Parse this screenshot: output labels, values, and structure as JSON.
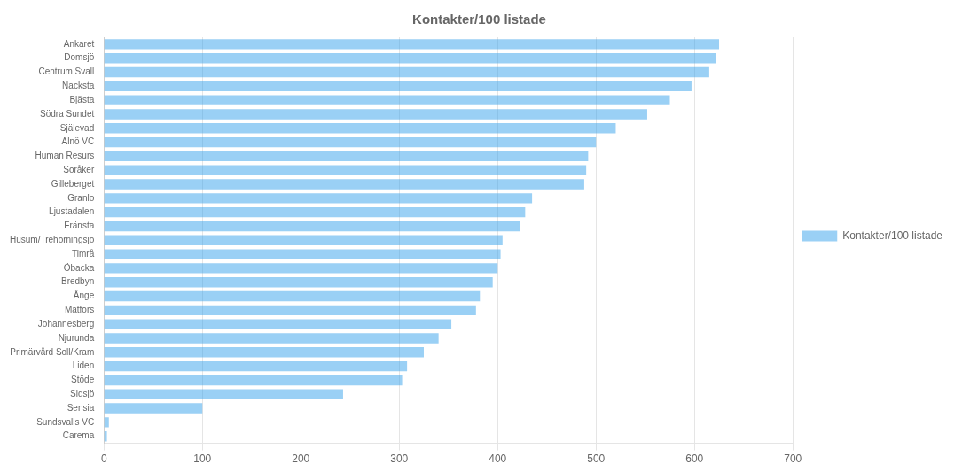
{
  "chart_data": {
    "type": "bar",
    "orientation": "horizontal",
    "title": "Kontakter/100 listade",
    "categories": [
      "Ankaret",
      "Domsjö",
      "Centrum Svall",
      "Nacksta",
      "Bjästa",
      "Södra Sundet",
      "Själevad",
      "Alnö VC",
      "Human Resurs",
      "Söråker",
      "Gilleberget",
      "Granlo",
      "Ljustadalen",
      "Fränsta",
      "Husum/Trehörningsjö",
      "Timrå",
      "Öbacka",
      "Bredbyn",
      "Ånge",
      "Matfors",
      "Johannesberg",
      "Njurunda",
      "Primärvård Soll/Kram",
      "Liden",
      "Stöde",
      "Sidsjö",
      "Sensia",
      "Sundsvalls VC",
      "Carema"
    ],
    "series": [
      {
        "name": "Kontakter/100 listade",
        "values": [
          625,
          622,
          615,
          597,
          575,
          552,
          520,
          500,
          492,
          490,
          488,
          435,
          428,
          423,
          405,
          403,
          400,
          395,
          382,
          378,
          353,
          340,
          325,
          308,
          303,
          243,
          100,
          5,
          3
        ]
      }
    ],
    "xlim": [
      0,
      700
    ],
    "xticks": [
      0,
      100,
      200,
      300,
      400,
      500,
      600,
      700
    ],
    "grid": true,
    "legend": "right"
  }
}
